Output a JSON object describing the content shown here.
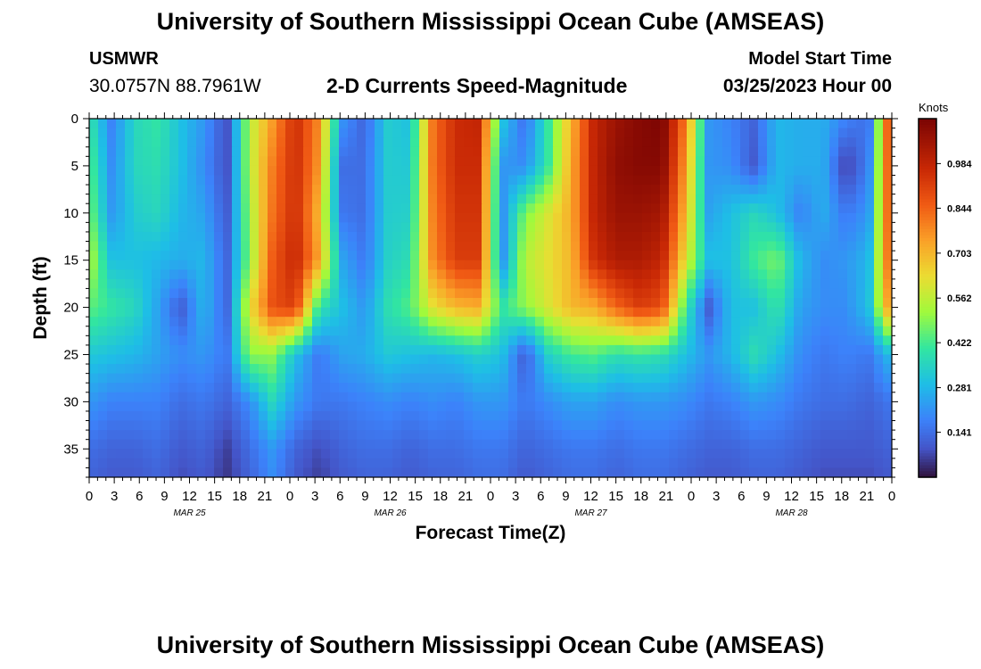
{
  "header": {
    "title": "University of Southern Mississippi Ocean Cube (AMSEAS)",
    "station": "USMWR",
    "coordinates": "30.0757N  88.7961W",
    "subtitle": "2-D Currents Speed-Magnitude",
    "start_label": "Model Start Time",
    "start_value": "03/25/2023 Hour 00"
  },
  "footer": {
    "title": "University of Southern Mississippi Ocean Cube (AMSEAS)"
  },
  "chart_data": {
    "type": "heatmap",
    "title": "2-D Currents Speed-Magnitude",
    "xlabel": "Forecast Time(Z)",
    "ylabel": "Depth (ft)",
    "x_hours_range": [
      0,
      96
    ],
    "ylim": [
      0,
      38
    ],
    "y_inverted": true,
    "x_tick_labels": [
      "0",
      "3",
      "6",
      "9",
      "12",
      "15",
      "18",
      "21",
      "0",
      "3",
      "6",
      "9",
      "12",
      "15",
      "18",
      "21",
      "0",
      "3",
      "6",
      "9",
      "12",
      "15",
      "18",
      "21",
      "0",
      "3",
      "6",
      "9",
      "12",
      "15",
      "18",
      "21",
      "0"
    ],
    "y_ticks": [
      0,
      5,
      10,
      15,
      20,
      25,
      30,
      35
    ],
    "y_tick_labels": [
      "0",
      "5",
      "10",
      "15",
      "20",
      "25",
      "30",
      "35"
    ],
    "date_labels": [
      "MAR 25",
      "MAR 26",
      "MAR 27",
      "MAR 28"
    ],
    "date_label_hours": [
      12,
      36,
      60,
      84
    ],
    "colorbar": {
      "unit": "Knots",
      "range": [
        0,
        1.125
      ],
      "ticks": [
        0.141,
        0.281,
        0.422,
        0.562,
        0.703,
        0.844,
        0.984
      ],
      "tick_labels": [
        "0.141",
        "0.281",
        "0.422",
        "0.562",
        "0.703",
        "0.844",
        "0.984"
      ]
    },
    "speed_columns_hours": [
      0,
      2,
      4,
      6,
      8,
      10,
      12,
      14,
      16,
      18,
      20,
      22,
      24,
      26,
      28,
      30,
      32,
      34,
      36,
      38,
      40,
      42,
      44,
      46,
      48,
      50,
      52,
      54,
      56,
      58,
      60,
      62,
      64,
      66,
      68,
      70,
      72,
      74,
      76,
      78,
      80,
      82,
      84,
      86,
      88,
      90,
      92,
      94,
      96
    ],
    "speed_rows_depth": [
      0,
      5,
      10,
      15,
      20,
      25,
      30,
      35,
      38
    ],
    "speed_knots": [
      [
        0.4,
        0.18,
        0.36,
        0.4,
        0.3,
        0.22,
        0.08,
        0.55,
        0.75,
        0.96,
        0.78,
        0.22,
        0.12,
        0.33,
        0.3,
        0.82,
        0.96,
        0.98,
        0.32,
        0.14,
        0.4,
        0.7,
        0.98,
        1.06,
        1.1,
        1.12,
        0.8,
        0.22,
        0.18,
        0.12,
        0.28,
        0.26,
        0.26,
        0.18,
        0.14,
        1.0
      ],
      [
        0.45,
        0.2,
        0.36,
        0.38,
        0.3,
        0.2,
        0.08,
        0.55,
        0.8,
        0.96,
        0.76,
        0.14,
        0.14,
        0.33,
        0.32,
        0.82,
        0.96,
        0.96,
        0.22,
        0.2,
        0.4,
        0.72,
        0.98,
        1.08,
        1.1,
        1.1,
        0.75,
        0.22,
        0.2,
        0.1,
        0.28,
        0.26,
        0.26,
        0.05,
        0.18,
        0.98
      ],
      [
        0.48,
        0.22,
        0.33,
        0.36,
        0.28,
        0.24,
        0.1,
        0.52,
        0.82,
        0.96,
        0.7,
        0.16,
        0.14,
        0.33,
        0.34,
        0.8,
        0.94,
        0.94,
        0.2,
        0.48,
        0.6,
        0.72,
        0.98,
        1.06,
        1.06,
        1.04,
        0.7,
        0.24,
        0.3,
        0.36,
        0.3,
        0.18,
        0.26,
        0.16,
        0.22,
        0.96
      ],
      [
        0.55,
        0.3,
        0.3,
        0.28,
        0.26,
        0.28,
        0.12,
        0.5,
        0.86,
        0.98,
        0.74,
        0.25,
        0.16,
        0.34,
        0.38,
        0.78,
        0.92,
        0.92,
        0.2,
        0.55,
        0.62,
        0.7,
        0.95,
        1.02,
        1.02,
        0.98,
        0.62,
        0.3,
        0.3,
        0.42,
        0.48,
        0.28,
        0.2,
        0.22,
        0.28,
        0.92
      ],
      [
        0.45,
        0.4,
        0.36,
        0.24,
        0.1,
        0.28,
        0.12,
        0.62,
        0.88,
        0.92,
        0.4,
        0.3,
        0.22,
        0.38,
        0.44,
        0.62,
        0.7,
        0.72,
        0.4,
        0.5,
        0.6,
        0.7,
        0.72,
        0.84,
        0.92,
        0.88,
        0.42,
        0.1,
        0.3,
        0.3,
        0.4,
        0.24,
        0.2,
        0.2,
        0.3,
        0.82
      ],
      [
        0.32,
        0.3,
        0.28,
        0.24,
        0.2,
        0.22,
        0.16,
        0.5,
        0.5,
        0.3,
        0.16,
        0.24,
        0.26,
        0.32,
        0.3,
        0.28,
        0.3,
        0.34,
        0.3,
        0.1,
        0.34,
        0.42,
        0.44,
        0.38,
        0.4,
        0.38,
        0.3,
        0.22,
        0.28,
        0.38,
        0.3,
        0.2,
        0.16,
        0.18,
        0.16,
        0.3
      ],
      [
        0.22,
        0.18,
        0.18,
        0.18,
        0.14,
        0.16,
        0.12,
        0.2,
        0.36,
        0.22,
        0.16,
        0.16,
        0.18,
        0.2,
        0.18,
        0.2,
        0.18,
        0.22,
        0.22,
        0.16,
        0.2,
        0.24,
        0.24,
        0.2,
        0.22,
        0.22,
        0.2,
        0.16,
        0.18,
        0.22,
        0.2,
        0.16,
        0.14,
        0.14,
        0.12,
        0.16
      ],
      [
        0.14,
        0.12,
        0.12,
        0.14,
        0.1,
        0.12,
        0.06,
        0.14,
        0.22,
        0.12,
        0.08,
        0.12,
        0.14,
        0.14,
        0.12,
        0.14,
        0.14,
        0.16,
        0.16,
        0.12,
        0.14,
        0.16,
        0.16,
        0.14,
        0.16,
        0.16,
        0.14,
        0.12,
        0.12,
        0.14,
        0.14,
        0.12,
        0.1,
        0.1,
        0.1,
        0.12
      ],
      [
        0.12,
        0.1,
        0.1,
        0.12,
        0.08,
        0.1,
        0.05,
        0.12,
        0.2,
        0.1,
        0.06,
        0.1,
        0.12,
        0.12,
        0.1,
        0.12,
        0.12,
        0.14,
        0.14,
        0.1,
        0.12,
        0.14,
        0.14,
        0.12,
        0.14,
        0.14,
        0.12,
        0.1,
        0.1,
        0.12,
        0.12,
        0.1,
        0.08,
        0.08,
        0.08,
        0.1
      ]
    ]
  }
}
